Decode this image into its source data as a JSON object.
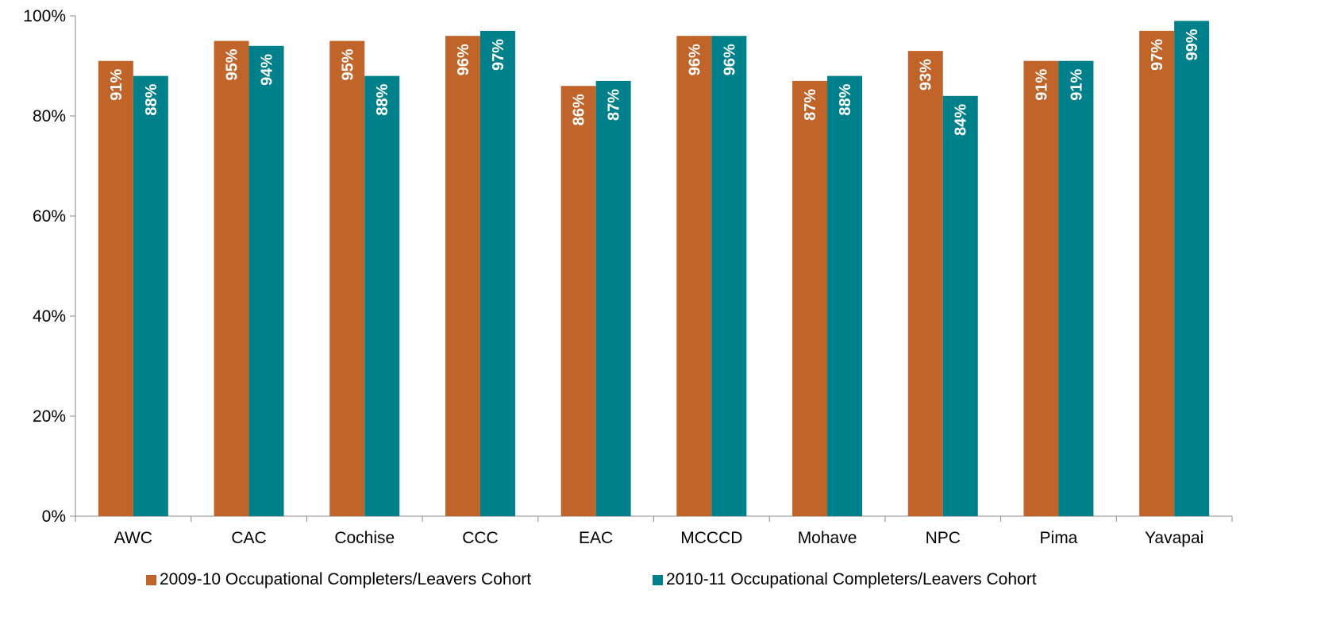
{
  "chart_data": {
    "type": "bar",
    "categories": [
      "AWC",
      "CAC",
      "Cochise",
      "CCC",
      "EAC",
      "MCCCD",
      "Mohave",
      "NPC",
      "Pima",
      "Yavapai"
    ],
    "series": [
      {
        "name": "2009-10 Occupational Completers/Leavers Cohort",
        "color": "#C0642A",
        "values": [
          91,
          95,
          95,
          96,
          86,
          96,
          87,
          93,
          91,
          97
        ],
        "labels": [
          "91%",
          "95%",
          "95%",
          "96%",
          "86%",
          "96%",
          "87%",
          "93%",
          "91%",
          "97%"
        ]
      },
      {
        "name": "2010-11 Occupational Completers/Leavers Cohort",
        "color": "#00808A",
        "values": [
          88,
          94,
          88,
          97,
          87,
          96,
          88,
          84,
          91,
          99
        ],
        "labels": [
          "88%",
          "94%",
          "88%",
          "97%",
          "87%",
          "96%",
          "88%",
          "84%",
          "91%",
          "99%"
        ]
      }
    ],
    "yticks": [
      "0%",
      "20%",
      "40%",
      "60%",
      "80%",
      "100%"
    ],
    "ylim": [
      0,
      100
    ],
    "ytick_step": 20,
    "title": "",
    "xlabel": "",
    "ylabel": "",
    "grid": false,
    "legend_position": "bottom"
  }
}
